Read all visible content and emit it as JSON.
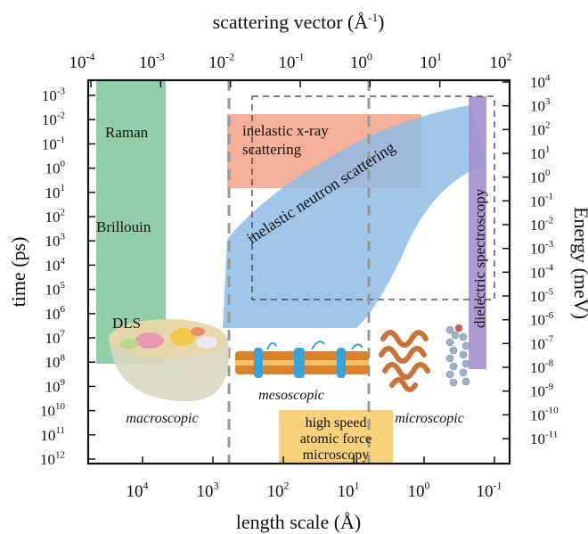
{
  "axes": {
    "top_label": "scattering vector (Å",
    "top_label_exp": "-1",
    "top_label_end": ")",
    "bottom_label": "length scale (Å)",
    "left_label": "time (ps)",
    "right_label": "Energy (meV)",
    "top_ticks": [
      {
        "base": "10",
        "exp": "-4"
      },
      {
        "base": "10",
        "exp": "-3"
      },
      {
        "base": "10",
        "exp": "-2"
      },
      {
        "base": "10",
        "exp": "-1"
      },
      {
        "base": "10",
        "exp": "0"
      },
      {
        "base": "10",
        "exp": "1"
      },
      {
        "base": "10",
        "exp": "2"
      }
    ],
    "bottom_ticks": [
      {
        "base": "10",
        "exp": "4"
      },
      {
        "base": "10",
        "exp": "3"
      },
      {
        "base": "10",
        "exp": "2"
      },
      {
        "base": "10",
        "exp": "1"
      },
      {
        "base": "10",
        "exp": "0"
      },
      {
        "base": "10",
        "exp": "-1"
      }
    ],
    "left_ticks": [
      {
        "base": "10",
        "exp": "-3"
      },
      {
        "base": "10",
        "exp": "-2"
      },
      {
        "base": "10",
        "exp": "-1"
      },
      {
        "base": "10",
        "exp": "0"
      },
      {
        "base": "10",
        "exp": "1"
      },
      {
        "base": "10",
        "exp": "2"
      },
      {
        "base": "10",
        "exp": "3"
      },
      {
        "base": "10",
        "exp": "4"
      },
      {
        "base": "10",
        "exp": "5"
      },
      {
        "base": "10",
        "exp": "6"
      },
      {
        "base": "10",
        "exp": "7"
      },
      {
        "base": "10",
        "exp": "8"
      },
      {
        "base": "10",
        "exp": "9"
      },
      {
        "base": "10",
        "exp": "10"
      },
      {
        "base": "10",
        "exp": "11"
      },
      {
        "base": "10",
        "exp": "12"
      }
    ],
    "right_ticks": [
      {
        "base": "10",
        "exp": "4"
      },
      {
        "base": "10",
        "exp": "3"
      },
      {
        "base": "10",
        "exp": "2"
      },
      {
        "base": "10",
        "exp": "1"
      },
      {
        "base": "10",
        "exp": "0"
      },
      {
        "base": "10",
        "exp": "-1"
      },
      {
        "base": "10",
        "exp": "-2"
      },
      {
        "base": "10",
        "exp": "-3"
      },
      {
        "base": "10",
        "exp": "-4"
      },
      {
        "base": "10",
        "exp": "-5"
      },
      {
        "base": "10",
        "exp": "-6"
      },
      {
        "base": "10",
        "exp": "-7"
      },
      {
        "base": "10",
        "exp": "-8"
      },
      {
        "base": "10",
        "exp": "-9"
      },
      {
        "base": "10",
        "exp": "-10"
      },
      {
        "base": "10",
        "exp": "-11"
      }
    ]
  },
  "techniques": {
    "raman": "Raman",
    "brillouin": "Brillouin",
    "dls": "DLS",
    "xray_line1": "inelastic x-ray",
    "xray_line2": "scattering",
    "neutron": "inelastic neutron scattering",
    "dielectric": "dielectric spectroscopy",
    "afm_line1": "high speed",
    "afm_line2": "atomic force",
    "afm_line3": "microscopy"
  },
  "regimes": {
    "macro": "macroscopic",
    "meso": "mesoscopic",
    "micro": "microscopic"
  },
  "colors": {
    "light_scattering": "#7fc79a",
    "xray": "#f4a78f",
    "neutron": "#8fbce6",
    "dielectric": "#a68fd0",
    "afm": "#f7cf72",
    "divider": "#999999",
    "frame": "#111111"
  }
}
